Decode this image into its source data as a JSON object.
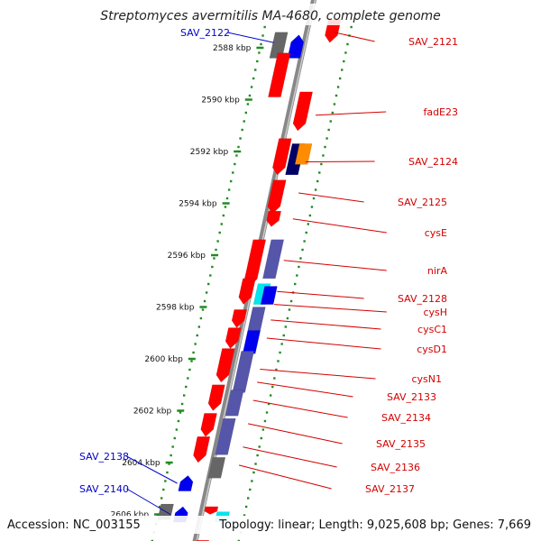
{
  "title": "Streptomyces avermitilis MA-4680, complete genome",
  "footer": {
    "accession": "Accession: NC_003155",
    "summary": "Topology: linear; Length: 9,025,608 bp; Genes: 7,669"
  },
  "ticks": [
    {
      "label": "2588 kbp",
      "kb": 2588
    },
    {
      "label": "2590 kbp",
      "kb": 2590
    },
    {
      "label": "2592 kbp",
      "kb": 2592
    },
    {
      "label": "2594 kbp",
      "kb": 2594
    },
    {
      "label": "2596 kbp",
      "kb": 2596
    },
    {
      "label": "2598 kbp",
      "kb": 2598
    },
    {
      "label": "2600 kbp",
      "kb": 2600
    },
    {
      "label": "2602 kbp",
      "kb": 2602
    },
    {
      "label": "2604 kbp",
      "kb": 2604
    },
    {
      "label": "2606 kbp",
      "kb": 2606
    }
  ],
  "gene_labels": [
    {
      "text": "SAV_2121",
      "side": "right",
      "color": "#d40000"
    },
    {
      "text": "fadE23",
      "side": "right",
      "color": "#d40000"
    },
    {
      "text": "SAV_2124",
      "side": "right",
      "color": "#d40000"
    },
    {
      "text": "SAV_2125",
      "side": "right",
      "color": "#d40000"
    },
    {
      "text": "cysE",
      "side": "right",
      "color": "#d40000"
    },
    {
      "text": "nirA",
      "side": "right",
      "color": "#d40000"
    },
    {
      "text": "SAV_2128",
      "side": "right",
      "color": "#d40000"
    },
    {
      "text": "cysH",
      "side": "right",
      "color": "#d40000"
    },
    {
      "text": "cysC1",
      "side": "right",
      "color": "#d40000"
    },
    {
      "text": "cysD1",
      "side": "right",
      "color": "#d40000"
    },
    {
      "text": "cysN1",
      "side": "right",
      "color": "#d40000"
    },
    {
      "text": "SAV_2133",
      "side": "right",
      "color": "#d40000"
    },
    {
      "text": "SAV_2134",
      "side": "right",
      "color": "#d40000"
    },
    {
      "text": "SAV_2135",
      "side": "right",
      "color": "#d40000"
    },
    {
      "text": "SAV_2136",
      "side": "right",
      "color": "#d40000"
    },
    {
      "text": "SAV_2137",
      "side": "right",
      "color": "#d40000"
    },
    {
      "text": "SAV_2122",
      "side": "left",
      "color": "#0000cc"
    },
    {
      "text": "SAV_2138",
      "side": "left",
      "color": "#0000cc"
    },
    {
      "text": "SAV_2140",
      "side": "left",
      "color": "#0000cc"
    }
  ],
  "colors": {
    "forward_gene": "#ff0000",
    "reverse_gene": "#0000ee",
    "rna_gene": "#5555aa",
    "pseudo_gene": "#666666",
    "tick_dots": "#228b22",
    "backbone": "#888888",
    "orange_feature": "#ff8c00",
    "navy_feature": "#000066",
    "cyan_feature": "#00e5ee"
  }
}
